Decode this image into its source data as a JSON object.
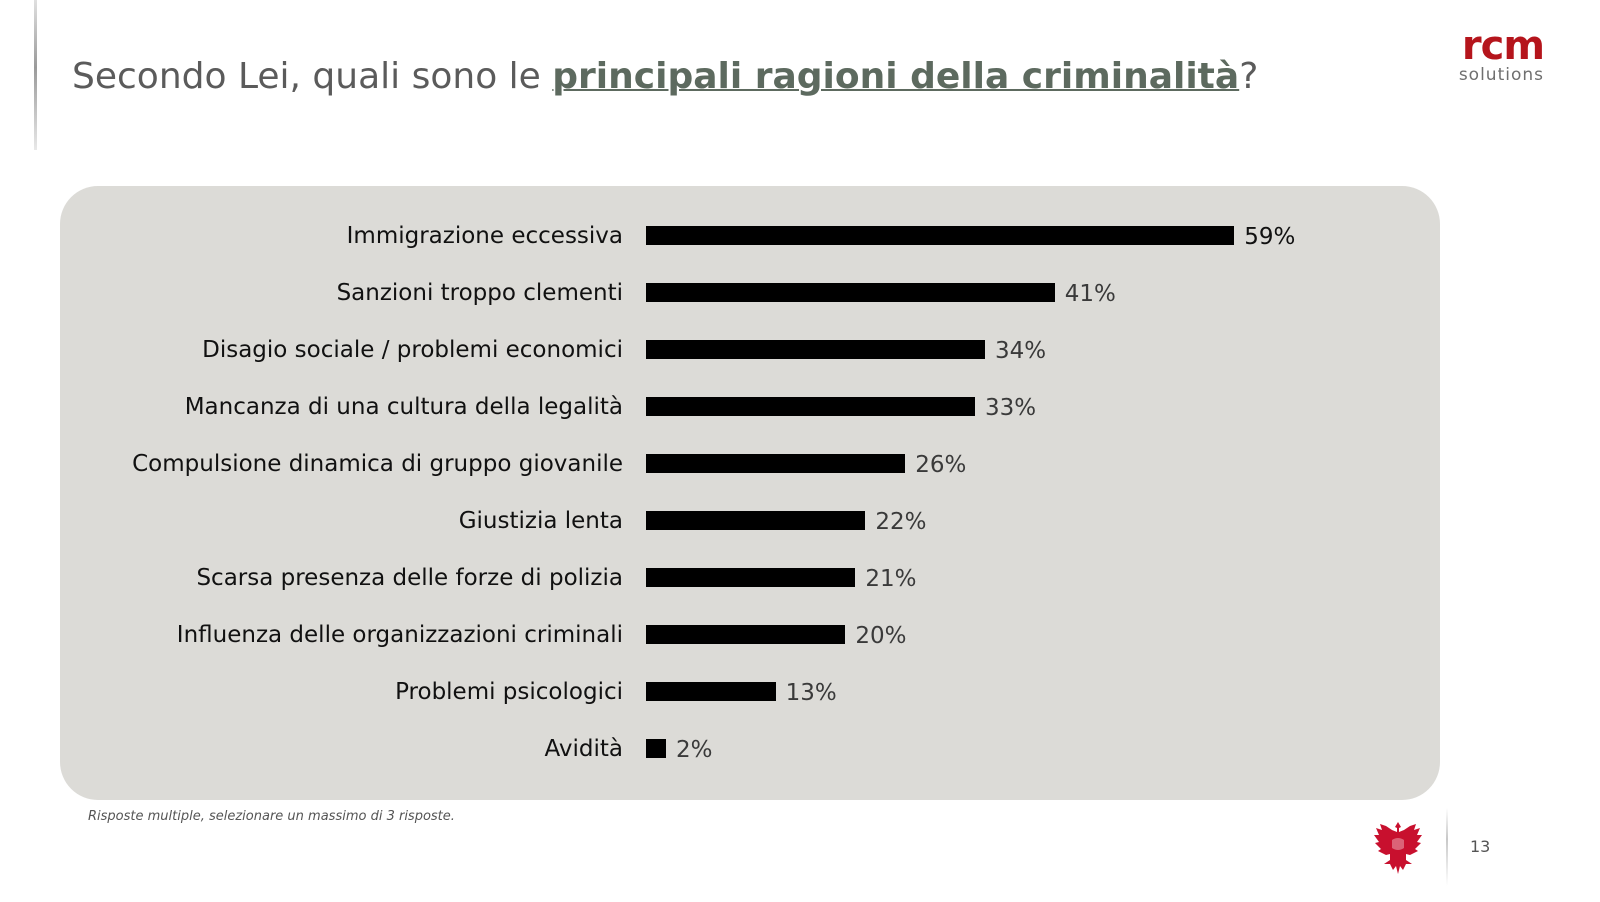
{
  "slide": {
    "title_prefix": "Secondo Lei, quali sono le ",
    "title_highlight": "principali ragioni della criminalità",
    "title_suffix": "?",
    "footnote": "Risposte multiple, selezionare un massimo di 3 risposte.",
    "page_number": "13"
  },
  "logo": {
    "main": "rcm",
    "sub": "solutions"
  },
  "colors": {
    "bar": "#000000",
    "panel": "#dcdbd7",
    "brand": "#b5151c"
  },
  "chart_data": {
    "type": "bar",
    "orientation": "horizontal",
    "categories": [
      "Immigrazione eccessiva",
      "Sanzioni troppo clementi",
      "Disagio sociale / problemi economici",
      "Mancanza di una cultura della legalità",
      "Compulsione dinamica di gruppo giovanile",
      "Giustizia lenta",
      "Scarsa presenza delle forze di polizia",
      "Influenza delle organizzazioni criminali",
      "Problemi psicologici",
      "Avidità"
    ],
    "values": [
      59,
      41,
      34,
      33,
      26,
      22,
      21,
      20,
      13,
      2
    ],
    "labels": [
      "59%",
      "41%",
      "34%",
      "33%",
      "26%",
      "22%",
      "21%",
      "20%",
      "13%",
      "2%"
    ],
    "unit": "%",
    "grid": false
  }
}
